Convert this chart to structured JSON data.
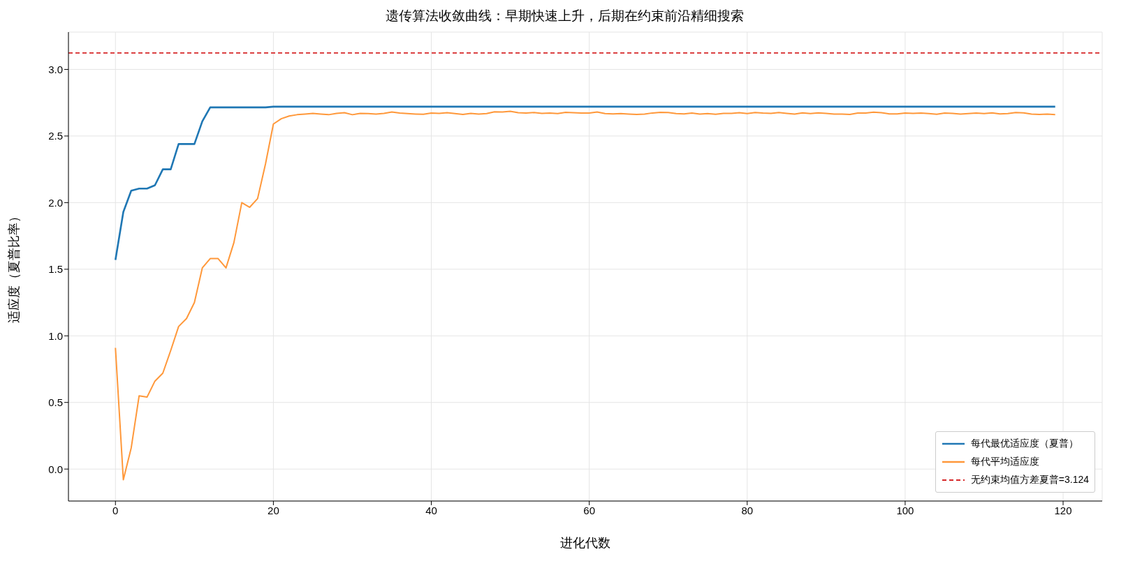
{
  "chart_data": {
    "type": "line",
    "title": "遗传算法收敛曲线：早期快速上升，后期在约束前沿精细搜索",
    "xlabel": "进化代数",
    "ylabel": "适应度（夏普比率）",
    "x": [
      0,
      1,
      2,
      3,
      4,
      5,
      6,
      7,
      8,
      9,
      10,
      11,
      12,
      13,
      14,
      15,
      16,
      17,
      18,
      19,
      20,
      21,
      22,
      23,
      24,
      25,
      26,
      27,
      28,
      29,
      30,
      31,
      32,
      33,
      34,
      35,
      36,
      37,
      38,
      39,
      40,
      41,
      42,
      43,
      44,
      45,
      46,
      47,
      48,
      49,
      50,
      51,
      52,
      53,
      54,
      55,
      56,
      57,
      58,
      59,
      60,
      61,
      62,
      63,
      64,
      65,
      66,
      67,
      68,
      69,
      70,
      71,
      72,
      73,
      74,
      75,
      76,
      77,
      78,
      79,
      80,
      81,
      82,
      83,
      84,
      85,
      86,
      87,
      88,
      89,
      90,
      91,
      92,
      93,
      94,
      95,
      96,
      97,
      98,
      99,
      100,
      101,
      102,
      103,
      104,
      105,
      106,
      107,
      108,
      109,
      110,
      111,
      112,
      113,
      114,
      115,
      116,
      117,
      118,
      119
    ],
    "series": [
      {
        "name": "每代最优适应度（夏普）",
        "color": "#1f77b4",
        "values": [
          1.57,
          1.93,
          2.09,
          2.105,
          2.105,
          2.13,
          2.25,
          2.25,
          2.44,
          2.44,
          2.44,
          2.61,
          2.715,
          2.715,
          2.715,
          2.715,
          2.715,
          2.715,
          2.715,
          2.715,
          2.72,
          2.72,
          2.72,
          2.72,
          2.72,
          2.72,
          2.72,
          2.72,
          2.72,
          2.72,
          2.72,
          2.72,
          2.72,
          2.72,
          2.72,
          2.72,
          2.72,
          2.72,
          2.72,
          2.72,
          2.72,
          2.72,
          2.72,
          2.72,
          2.72,
          2.72,
          2.72,
          2.72,
          2.72,
          2.72,
          2.72,
          2.72,
          2.72,
          2.72,
          2.72,
          2.72,
          2.72,
          2.72,
          2.72,
          2.72,
          2.72,
          2.72,
          2.72,
          2.72,
          2.72,
          2.72,
          2.72,
          2.72,
          2.72,
          2.72,
          2.72,
          2.72,
          2.72,
          2.72,
          2.72,
          2.72,
          2.72,
          2.72,
          2.72,
          2.72,
          2.72,
          2.72,
          2.72,
          2.72,
          2.72,
          2.72,
          2.72,
          2.72,
          2.72,
          2.72,
          2.72,
          2.72,
          2.72,
          2.72,
          2.72,
          2.72,
          2.72,
          2.72,
          2.72,
          2.72,
          2.72,
          2.72,
          2.72,
          2.72,
          2.72,
          2.72,
          2.72,
          2.72,
          2.72,
          2.72,
          2.72,
          2.72,
          2.72,
          2.72,
          2.72,
          2.72,
          2.72,
          2.72,
          2.72,
          2.72
        ]
      },
      {
        "name": "每代平均适应度",
        "color": "#ff983a",
        "values": [
          0.91,
          -0.08,
          0.16,
          0.55,
          0.54,
          0.66,
          0.72,
          0.89,
          1.07,
          1.13,
          1.25,
          1.51,
          1.58,
          1.58,
          1.51,
          1.7,
          2.0,
          1.965,
          2.03,
          2.29,
          2.59,
          2.63,
          2.65,
          2.66,
          2.665,
          2.67,
          2.665,
          2.66,
          2.67,
          2.675,
          2.66,
          2.67,
          2.668,
          2.665,
          2.67,
          2.68,
          2.672,
          2.668,
          2.665,
          2.663,
          2.672,
          2.67,
          2.675,
          2.668,
          2.662,
          2.67,
          2.665,
          2.668,
          2.682,
          2.68,
          2.685,
          2.675,
          2.672,
          2.676,
          2.67,
          2.673,
          2.668,
          2.678,
          2.675,
          2.672,
          2.672,
          2.68,
          2.668,
          2.666,
          2.668,
          2.665,
          2.662,
          2.665,
          2.673,
          2.678,
          2.676,
          2.668,
          2.666,
          2.672,
          2.665,
          2.668,
          2.663,
          2.67,
          2.67,
          2.675,
          2.668,
          2.676,
          2.672,
          2.67,
          2.676,
          2.67,
          2.665,
          2.674,
          2.668,
          2.674,
          2.67,
          2.665,
          2.664,
          2.662,
          2.672,
          2.673,
          2.679,
          2.675,
          2.666,
          2.666,
          2.673,
          2.67,
          2.672,
          2.668,
          2.663,
          2.672,
          2.67,
          2.664,
          2.668,
          2.673,
          2.668,
          2.674,
          2.666,
          2.668,
          2.676,
          2.674,
          2.664,
          2.662,
          2.664,
          2.66
        ]
      }
    ],
    "ref_lines": [
      {
        "axis": "y",
        "value": 3.124,
        "label": "无约束均值方差夏普=3.124",
        "color": "#d62728",
        "line_style": "dashed"
      }
    ],
    "xlim": [
      -5.95,
      124.95
    ],
    "xticks": [
      0,
      20,
      40,
      60,
      80,
      100,
      120
    ],
    "ylim": [
      -0.24,
      3.28
    ],
    "yticks": [
      {
        "value": 0,
        "label": "0.0"
      },
      {
        "value": 0.5,
        "label": "0.5"
      },
      {
        "value": 1,
        "label": "1.0"
      },
      {
        "value": 1.5,
        "label": "1.5"
      },
      {
        "value": 2,
        "label": "2.0"
      },
      {
        "value": 2.5,
        "label": "2.5"
      },
      {
        "value": 3,
        "label": "3.0"
      }
    ],
    "grid": true,
    "legend": "bottom right",
    "marker": "none",
    "line_style": "solid"
  }
}
